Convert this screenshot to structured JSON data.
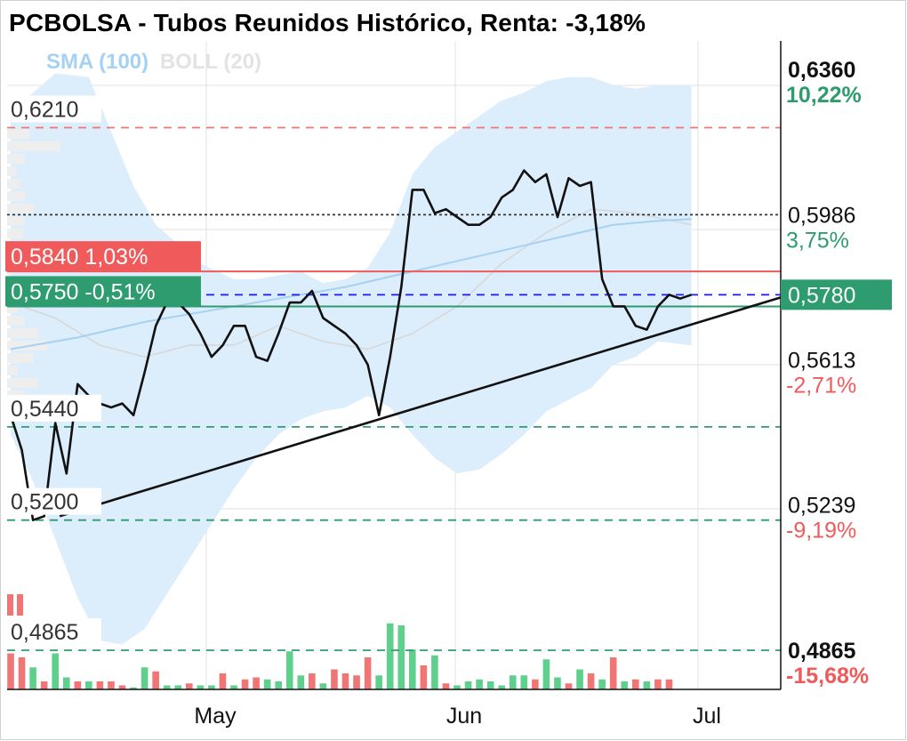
{
  "header": {
    "title": "PCBOLSA - Tubos Reunidos Histórico, Renta: -3,18%"
  },
  "legend": {
    "sma": "SMA (100)",
    "boll": "BOLL (20)"
  },
  "colors": {
    "price": "#111111",
    "sma": "#a6d1f2",
    "band": "#dcedfb",
    "up": "#5fcf8c",
    "down": "#f07575",
    "green_label": "#2e9c6f",
    "red_label": "#f05a5a",
    "blue_line": "#1a1aff"
  },
  "chart_data": {
    "type": "line",
    "xlabel": "",
    "ylabel": "",
    "x_ticks": [
      "May",
      "Jun",
      "Jul"
    ],
    "x_tick_pos": [
      25,
      57,
      88
    ],
    "ylim": [
      0.472,
      0.6435
    ],
    "price_series": [
      [
        0,
        0.547
      ],
      [
        1,
        0.538
      ],
      [
        2,
        0.52
      ],
      [
        3,
        0.521
      ],
      [
        4,
        0.548
      ],
      [
        5,
        0.54
      ],
      [
        6,
        0.56
      ],
      [
        7,
        0.557
      ],
      [
        8,
        0.559
      ],
      [
        9,
        0.557
      ],
      [
        10,
        0.559
      ],
      [
        11,
        0.557
      ],
      [
        12,
        0.562
      ],
      [
        13,
        0.571
      ],
      [
        14,
        0.576
      ],
      [
        15,
        0.576
      ],
      [
        16,
        0.576
      ],
      [
        17,
        0.576
      ],
      [
        18,
        0.576
      ],
      [
        19,
        0.576
      ],
      [
        20,
        0.576
      ],
      [
        21,
        0.574
      ],
      [
        22,
        0.571
      ],
      [
        23,
        0.566
      ],
      [
        24,
        0.576
      ],
      [
        25,
        0.576
      ],
      [
        26,
        0.576
      ],
      [
        27,
        0.576
      ],
      [
        28,
        0.57
      ],
      [
        29,
        0.57
      ],
      [
        30,
        0.565
      ],
      [
        31,
        0.56
      ],
      [
        32,
        0.56
      ],
      [
        33,
        0.563
      ],
      [
        34,
        0.564
      ],
      [
        35,
        0.57
      ],
      [
        36,
        0.57
      ],
      [
        37,
        0.576
      ],
      [
        38,
        0.576
      ],
      [
        39,
        0.578
      ],
      [
        40,
        0.579
      ],
      [
        41,
        0.571
      ],
      [
        42,
        0.57
      ],
      [
        43,
        0.567
      ],
      [
        44,
        0.564
      ],
      [
        45,
        0.561
      ],
      [
        46,
        0.554
      ],
      [
        47,
        0.571
      ],
      [
        48,
        0.588
      ],
      [
        49,
        0.604
      ],
      [
        50,
        0.603
      ],
      [
        51,
        0.599
      ],
      [
        52,
        0.597
      ],
      [
        53,
        0.599
      ],
      [
        54,
        0.596
      ],
      [
        55,
        0.596
      ],
      [
        56,
        0.596
      ],
      [
        57,
        0.596
      ],
      [
        58,
        0.595
      ],
      [
        59,
        0.599
      ],
      [
        60,
        0.598
      ],
      [
        61,
        0.604
      ],
      [
        62,
        0.605
      ],
      [
        63,
        0.606
      ],
      [
        64,
        0.61
      ],
      [
        65,
        0.608
      ],
      [
        66,
        0.61
      ],
      [
        67,
        0.609
      ],
      [
        68,
        0.61
      ],
      [
        69,
        0.594
      ],
      [
        70,
        0.592
      ],
      [
        71,
        0.59
      ],
      [
        72,
        0.586
      ],
      [
        73,
        0.582
      ],
      [
        74,
        0.576
      ],
      [
        75,
        0.575
      ],
      [
        76,
        0.576
      ],
      [
        77,
        0.576
      ],
      [
        78,
        0.575
      ],
      [
        79,
        0.578
      ],
      [
        80,
        0.578
      ],
      [
        81,
        0.578
      ],
      [
        82,
        0.578
      ],
      [
        83,
        0.578
      ],
      [
        84,
        0.578
      ],
      [
        85,
        0.578
      ]
    ],
    "price_line_points": [
      [
        0,
        0.547
      ],
      [
        1,
        0.538
      ],
      [
        2,
        0.52
      ],
      [
        3,
        0.521
      ],
      [
        4,
        0.545
      ],
      [
        5,
        0.532
      ],
      [
        6,
        0.555
      ],
      [
        7,
        0.552
      ],
      [
        8,
        0.55
      ],
      [
        9,
        0.549
      ],
      [
        10,
        0.55
      ],
      [
        11,
        0.547
      ],
      [
        12,
        0.558
      ],
      [
        13,
        0.57
      ],
      [
        14,
        0.576
      ],
      [
        15,
        0.576
      ],
      [
        16,
        0.573
      ],
      [
        17,
        0.568
      ],
      [
        18,
        0.562
      ],
      [
        19,
        0.565
      ],
      [
        20,
        0.57
      ],
      [
        21,
        0.57
      ],
      [
        22,
        0.562
      ],
      [
        23,
        0.561
      ],
      [
        24,
        0.568
      ],
      [
        25,
        0.576
      ],
      [
        26,
        0.576
      ],
      [
        27,
        0.579
      ],
      [
        28,
        0.572
      ],
      [
        29,
        0.57
      ],
      [
        30,
        0.568
      ],
      [
        31,
        0.565
      ],
      [
        32,
        0.56
      ],
      [
        33,
        0.547
      ],
      [
        34,
        0.562
      ],
      [
        35,
        0.58
      ],
      [
        36,
        0.605
      ],
      [
        37,
        0.605
      ],
      [
        38,
        0.599
      ],
      [
        39,
        0.6
      ],
      [
        40,
        0.598
      ],
      [
        41,
        0.596
      ],
      [
        42,
        0.596
      ],
      [
        43,
        0.598
      ],
      [
        44,
        0.603
      ],
      [
        45,
        0.605
      ],
      [
        46,
        0.61
      ],
      [
        47,
        0.607
      ],
      [
        48,
        0.609
      ],
      [
        49,
        0.598
      ],
      [
        50,
        0.608
      ],
      [
        51,
        0.606
      ],
      [
        52,
        0.607
      ],
      [
        53,
        0.582
      ],
      [
        54,
        0.575
      ],
      [
        55,
        0.575
      ],
      [
        56,
        0.57
      ],
      [
        57,
        0.569
      ],
      [
        58,
        0.575
      ],
      [
        59,
        0.578
      ],
      [
        60,
        0.577
      ],
      [
        61,
        0.578
      ]
    ],
    "price_line_note": "Price",
    "sma_points": [
      [
        0,
        0.564
      ],
      [
        6,
        0.567
      ],
      [
        12,
        0.571
      ],
      [
        18,
        0.574
      ],
      [
        24,
        0.577
      ],
      [
        30,
        0.58
      ],
      [
        36,
        0.584
      ],
      [
        42,
        0.588
      ],
      [
        48,
        0.592
      ],
      [
        54,
        0.596
      ],
      [
        58,
        0.597
      ],
      [
        61,
        0.5975
      ]
    ],
    "boll_mid_points": [
      [
        0,
        0.576
      ],
      [
        4,
        0.572
      ],
      [
        8,
        0.565
      ],
      [
        12,
        0.562
      ],
      [
        16,
        0.565
      ],
      [
        20,
        0.565
      ],
      [
        24,
        0.57
      ],
      [
        28,
        0.566
      ],
      [
        32,
        0.564
      ],
      [
        36,
        0.568
      ],
      [
        40,
        0.575
      ],
      [
        44,
        0.586
      ],
      [
        48,
        0.594
      ],
      [
        52,
        0.6
      ],
      [
        56,
        0.599
      ],
      [
        61,
        0.596
      ]
    ],
    "boll_upper_points": [
      [
        0,
        0.625
      ],
      [
        2,
        0.63
      ],
      [
        4,
        0.635
      ],
      [
        7,
        0.634
      ],
      [
        9,
        0.62
      ],
      [
        11,
        0.606
      ],
      [
        13,
        0.596
      ],
      [
        15,
        0.591
      ],
      [
        17,
        0.586
      ],
      [
        20,
        0.582
      ],
      [
        22,
        0.582
      ],
      [
        24,
        0.583
      ],
      [
        26,
        0.584
      ],
      [
        28,
        0.581
      ],
      [
        30,
        0.582
      ],
      [
        32,
        0.585
      ],
      [
        34,
        0.594
      ],
      [
        36,
        0.609
      ],
      [
        38,
        0.616
      ],
      [
        40,
        0.62
      ],
      [
        42,
        0.624
      ],
      [
        44,
        0.628
      ],
      [
        46,
        0.63
      ],
      [
        48,
        0.633
      ],
      [
        50,
        0.634
      ],
      [
        52,
        0.634
      ],
      [
        54,
        0.632
      ],
      [
        56,
        0.631
      ],
      [
        58,
        0.632
      ],
      [
        61,
        0.632
      ]
    ],
    "boll_lower_points": [
      [
        0,
        0.542
      ],
      [
        2,
        0.53
      ],
      [
        4,
        0.515
      ],
      [
        6,
        0.5
      ],
      [
        8,
        0.489
      ],
      [
        10,
        0.488
      ],
      [
        12,
        0.492
      ],
      [
        14,
        0.501
      ],
      [
        16,
        0.51
      ],
      [
        18,
        0.519
      ],
      [
        20,
        0.528
      ],
      [
        22,
        0.536
      ],
      [
        24,
        0.542
      ],
      [
        26,
        0.546
      ],
      [
        28,
        0.548
      ],
      [
        30,
        0.549
      ],
      [
        32,
        0.552
      ],
      [
        34,
        0.549
      ],
      [
        36,
        0.542
      ],
      [
        38,
        0.536
      ],
      [
        40,
        0.532
      ],
      [
        42,
        0.533
      ],
      [
        44,
        0.537
      ],
      [
        46,
        0.542
      ],
      [
        48,
        0.548
      ],
      [
        50,
        0.551
      ],
      [
        52,
        0.554
      ],
      [
        54,
        0.56
      ],
      [
        56,
        0.562
      ],
      [
        58,
        0.566
      ],
      [
        61,
        0.565
      ]
    ],
    "trendline": [
      [
        2,
        0.521
      ],
      [
        63,
        0.578
      ]
    ],
    "volume_bars": [
      {
        "i": 0,
        "v": 0.9,
        "up": false
      },
      {
        "i": 1,
        "v": 0.8,
        "up": false
      },
      {
        "i": 2,
        "v": 0.55,
        "up": true
      },
      {
        "i": 3,
        "v": 0.2,
        "up": false
      },
      {
        "i": 4,
        "v": 0.9,
        "up": true
      },
      {
        "i": 5,
        "v": 0.3,
        "up": true
      },
      {
        "i": 6,
        "v": 0.2,
        "up": false
      },
      {
        "i": 7,
        "v": 0.2,
        "up": true
      },
      {
        "i": 8,
        "v": 0.2,
        "up": false
      },
      {
        "i": 9,
        "v": 0.2,
        "up": false
      },
      {
        "i": 10,
        "v": 0.1,
        "up": false
      },
      {
        "i": 11,
        "v": 0.05,
        "up": true
      },
      {
        "i": 12,
        "v": 0.55,
        "up": true
      },
      {
        "i": 13,
        "v": 0.45,
        "up": false
      },
      {
        "i": 14,
        "v": 0.1,
        "up": true
      },
      {
        "i": 15,
        "v": 0.1,
        "up": true
      },
      {
        "i": 16,
        "v": 0.15,
        "up": false
      },
      {
        "i": 17,
        "v": 0.1,
        "up": true
      },
      {
        "i": 18,
        "v": 0.1,
        "up": true
      },
      {
        "i": 19,
        "v": 0.4,
        "up": false
      },
      {
        "i": 20,
        "v": 0.1,
        "up": true
      },
      {
        "i": 21,
        "v": 0.25,
        "up": false
      },
      {
        "i": 22,
        "v": 0.3,
        "up": false
      },
      {
        "i": 23,
        "v": 0.25,
        "up": true
      },
      {
        "i": 24,
        "v": 0.2,
        "up": true
      },
      {
        "i": 25,
        "v": 0.95,
        "up": true
      },
      {
        "i": 26,
        "v": 0.35,
        "up": true
      },
      {
        "i": 27,
        "v": 0.4,
        "up": false
      },
      {
        "i": 28,
        "v": 0.15,
        "up": true
      },
      {
        "i": 29,
        "v": 0.5,
        "up": false
      },
      {
        "i": 30,
        "v": 0.4,
        "up": false
      },
      {
        "i": 31,
        "v": 0.35,
        "up": false
      },
      {
        "i": 32,
        "v": 0.8,
        "up": false
      },
      {
        "i": 33,
        "v": 0.35,
        "up": true
      },
      {
        "i": 34,
        "v": 1.65,
        "up": true
      },
      {
        "i": 35,
        "v": 1.6,
        "up": true
      },
      {
        "i": 36,
        "v": 1.0,
        "up": true
      },
      {
        "i": 37,
        "v": 0.6,
        "up": false
      },
      {
        "i": 38,
        "v": 0.85,
        "up": true
      },
      {
        "i": 39,
        "v": 0.15,
        "up": false
      },
      {
        "i": 40,
        "v": 0.1,
        "up": true
      },
      {
        "i": 41,
        "v": 0.2,
        "up": true
      },
      {
        "i": 42,
        "v": 0.25,
        "up": true
      },
      {
        "i": 43,
        "v": 0.2,
        "up": true
      },
      {
        "i": 44,
        "v": 0.1,
        "up": true
      },
      {
        "i": 45,
        "v": 0.35,
        "up": true
      },
      {
        "i": 46,
        "v": 0.35,
        "up": true
      },
      {
        "i": 47,
        "v": 0.25,
        "up": false
      },
      {
        "i": 48,
        "v": 0.75,
        "up": true
      },
      {
        "i": 49,
        "v": 0.3,
        "up": true
      },
      {
        "i": 50,
        "v": 0.15,
        "up": false
      },
      {
        "i": 51,
        "v": 0.5,
        "up": true
      },
      {
        "i": 52,
        "v": 0.4,
        "up": false
      },
      {
        "i": 53,
        "v": 0.25,
        "up": true
      },
      {
        "i": 54,
        "v": 0.8,
        "up": false
      },
      {
        "i": 55,
        "v": 0.2,
        "up": true
      },
      {
        "i": 56,
        "v": 0.25,
        "up": false
      },
      {
        "i": 57,
        "v": 0.2,
        "up": true
      },
      {
        "i": 58,
        "v": 0.25,
        "up": false
      },
      {
        "i": 59,
        "v": 0.25,
        "up": false
      }
    ],
    "volume_profile": [
      0.25,
      0.6,
      0.2,
      0.1,
      0.15,
      0.2,
      0.3,
      0.2,
      0.18,
      0.15,
      0.1,
      0.05,
      0.1,
      0.08,
      0.12,
      0.2,
      0.35,
      0.45,
      0.3,
      0.12,
      0.35,
      0.2
    ],
    "levels": [
      {
        "value": 0.621,
        "label": "0,6210",
        "style": "dash",
        "color": "#f07575"
      },
      {
        "value": 0.5986,
        "style": "dot",
        "color": "#333333"
      },
      {
        "value": 0.584,
        "style": "solid",
        "color": "#f05a5a"
      },
      {
        "value": 0.578,
        "style": "dash",
        "color": "#1a1aff"
      },
      {
        "value": 0.575,
        "style": "solid",
        "color": "#2e9c6f"
      },
      {
        "value": 0.544,
        "label": "0,5440",
        "style": "dash",
        "color": "#2e9c6f"
      },
      {
        "value": 0.52,
        "label": "0,5200",
        "style": "dash",
        "color": "#2e9c6f"
      },
      {
        "value": 0.4865,
        "label": "0,4865",
        "style": "dash",
        "color": "#2e9c6f"
      }
    ],
    "right_labels": [
      {
        "value": 0.636,
        "price": "0,6360",
        "pct": "10,22%",
        "bold": true,
        "pct_color": "#2e9c6f"
      },
      {
        "value": 0.5986,
        "price": "0,5986",
        "pct": "3,75%",
        "bold": false,
        "pct_color": "#2e9c6f"
      },
      {
        "value": 0.5613,
        "price": "0,5613",
        "pct": "-2,71%",
        "bold": false,
        "pct_color": "#f05a5a"
      },
      {
        "value": 0.5239,
        "price": "0,5239",
        "pct": "-9,19%",
        "bold": false,
        "pct_color": "#f05a5a"
      },
      {
        "value": 0.4865,
        "price": "0,4865",
        "pct": "-15,68%",
        "bold": true,
        "pct_color": "#f05a5a"
      }
    ],
    "current_price": {
      "value": 0.578,
      "label": "0,5780"
    },
    "badges": [
      {
        "value": 0.584,
        "price": "0,5840",
        "pct": "1,03%",
        "color": "#f05a5a"
      },
      {
        "value": 0.575,
        "price": "0,5750",
        "pct": "-0,51%",
        "color": "#2e9c6f"
      }
    ]
  }
}
